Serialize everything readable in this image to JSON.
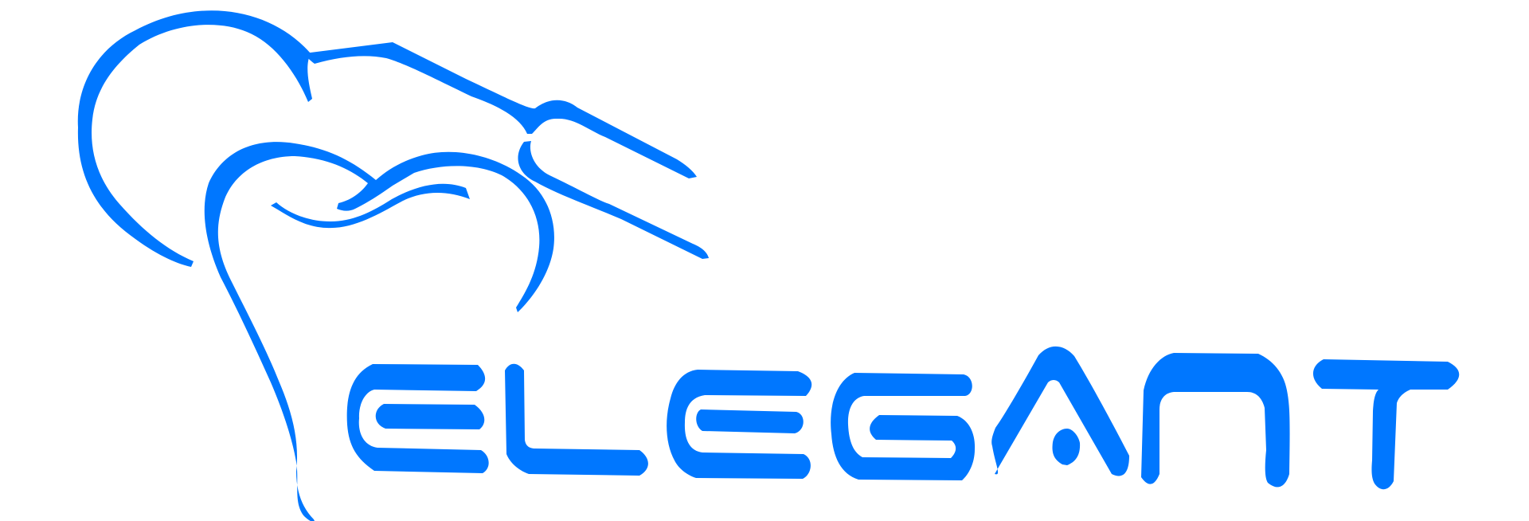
{
  "logo": {
    "wordmark": "ELEGANT",
    "color": "#0077FF",
    "background": "#FFFFFF"
  }
}
